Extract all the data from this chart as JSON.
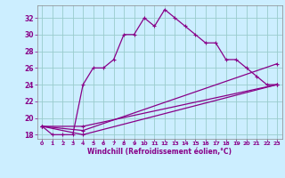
{
  "xlabel": "Windchill (Refroidissement éolien,°C)",
  "background_color": "#cceeff",
  "line_color": "#880088",
  "grid_color": "#99cccc",
  "xlim": [
    -0.5,
    23.5
  ],
  "ylim": [
    17.5,
    33.5
  ],
  "xticks": [
    0,
    1,
    2,
    3,
    4,
    5,
    6,
    7,
    8,
    9,
    10,
    11,
    12,
    13,
    14,
    15,
    16,
    17,
    18,
    19,
    20,
    21,
    22,
    23
  ],
  "yticks": [
    18,
    20,
    22,
    24,
    26,
    28,
    30,
    32
  ],
  "line1_x": [
    0,
    1,
    2,
    3,
    4,
    5,
    6,
    7,
    8,
    9,
    10,
    11,
    12,
    13,
    14,
    15,
    16,
    17,
    18,
    19,
    20,
    21,
    22,
    23
  ],
  "line1_y": [
    19,
    18,
    18,
    18,
    24,
    26,
    26,
    27,
    30,
    30,
    32,
    31,
    33,
    32,
    31,
    30,
    29,
    29,
    27,
    27,
    26,
    25,
    24,
    24
  ],
  "line2_x": [
    0,
    4,
    23
  ],
  "line2_y": [
    19,
    19,
    24
  ],
  "line3_x": [
    0,
    4,
    23
  ],
  "line3_y": [
    19,
    18,
    24
  ],
  "line4_x": [
    0,
    4,
    23
  ],
  "line4_y": [
    19,
    18.5,
    26.5
  ]
}
